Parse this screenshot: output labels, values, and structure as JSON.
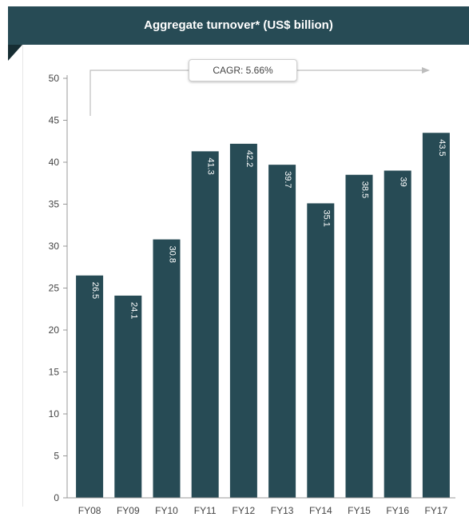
{
  "title": "Aggregate turnover* (US$ billion)",
  "annotation": "CAGR: 5.66%",
  "colors": {
    "bar": "#274b55",
    "banner": "#274b55",
    "axis": "#999999"
  },
  "chart_data": {
    "type": "bar",
    "title": "Aggregate turnover* (US$ billion)",
    "categories": [
      "FY08",
      "FY09",
      "FY10",
      "FY11",
      "FY12",
      "FY13",
      "FY14",
      "FY15",
      "FY16",
      "FY17"
    ],
    "values": [
      26.5,
      24.1,
      30.8,
      41.3,
      42.2,
      39.7,
      35.1,
      38.5,
      39,
      43.5
    ],
    "ylim": [
      0,
      50
    ],
    "yticks": [
      0,
      5,
      10,
      15,
      20,
      25,
      30,
      35,
      40,
      45,
      50
    ],
    "annotations": [
      "CAGR: 5.66%"
    ],
    "grid": false,
    "legend": "none"
  }
}
